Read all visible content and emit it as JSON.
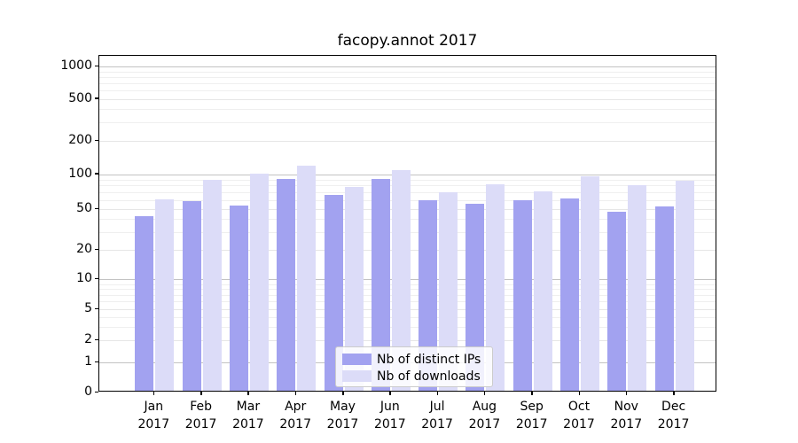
{
  "title": "facopy.annot 2017",
  "colors": {
    "ips_bar": "#a2a2f0",
    "downloads_bar": "#dcdcf8",
    "grid_major": "#c3c3c3",
    "grid_mid": "#e6e6e6",
    "grid_minor": "#efefef",
    "axis": "#000000",
    "legend_border": "#cccccc"
  },
  "legend": {
    "items": [
      {
        "label": "Nb of distinct IPs",
        "color_key": "ips_bar"
      },
      {
        "label": "Nb of downloads",
        "color_key": "downloads_bar"
      }
    ]
  },
  "y_axis": {
    "tick_labels": [
      "0",
      "1",
      "2",
      "5",
      "10",
      "20",
      "50",
      "100",
      "200",
      "500",
      "1000"
    ],
    "tick_values": [
      0,
      1,
      2,
      5,
      10,
      20,
      50,
      100,
      200,
      500,
      1000
    ]
  },
  "x_axis": {
    "months": [
      "Jan",
      "Feb",
      "Mar",
      "Apr",
      "May",
      "Jun",
      "Jul",
      "Aug",
      "Sep",
      "Oct",
      "Nov",
      "Dec"
    ],
    "year": "2017"
  },
  "chart_data": {
    "type": "bar",
    "title": "facopy.annot 2017",
    "categories": [
      "Jan 2017",
      "Feb 2017",
      "Mar 2017",
      "Apr 2017",
      "May 2017",
      "Jun 2017",
      "Jul 2017",
      "Aug 2017",
      "Sep 2017",
      "Oct 2017",
      "Nov 2017",
      "Dec 2017"
    ],
    "series": [
      {
        "name": "Nb of distinct IPs",
        "values": [
          41,
          57,
          52,
          88,
          64,
          88,
          58,
          54,
          58,
          60,
          45,
          51
        ]
      },
      {
        "name": "Nb of downloads",
        "values": [
          59,
          86,
          97,
          115,
          75,
          104,
          68,
          79,
          69,
          92,
          78,
          84
        ]
      }
    ],
    "xlabel": "",
    "ylabel": "",
    "yscale": "symlog-like",
    "ylim": [
      0,
      1300
    ],
    "y_ticks": [
      0,
      1,
      2,
      5,
      10,
      20,
      50,
      100,
      200,
      500,
      1000
    ],
    "grid": "on",
    "legend_position": "lower center"
  }
}
